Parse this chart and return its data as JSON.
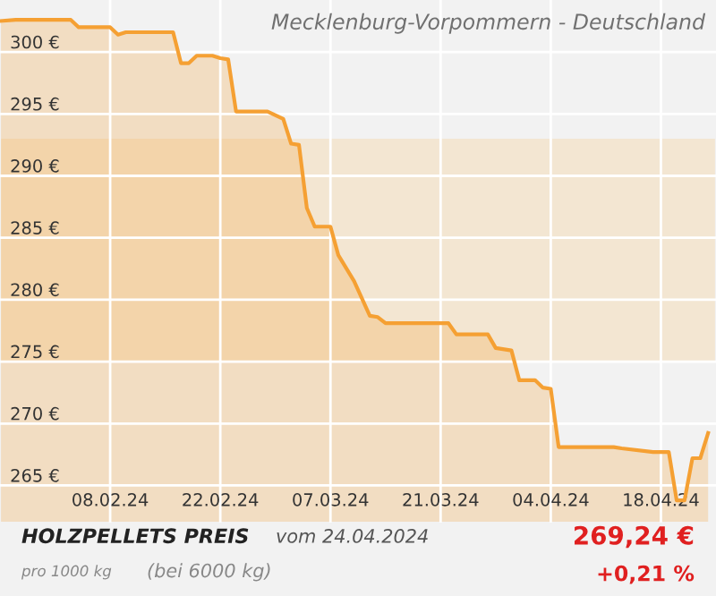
{
  "chart_data": {
    "type": "area",
    "title": "Mecklenburg-Vorpommern - Deutschland",
    "x": [
      "2024-01-25",
      "2024-01-27",
      "2024-02-03",
      "2024-02-04",
      "2024-02-08",
      "2024-02-09",
      "2024-02-10",
      "2024-02-16",
      "2024-02-17",
      "2024-02-18",
      "2024-02-19",
      "2024-02-21",
      "2024-02-22",
      "2024-02-23",
      "2024-02-24",
      "2024-02-28",
      "2024-03-01",
      "2024-03-02",
      "2024-03-03",
      "2024-03-04",
      "2024-03-05",
      "2024-03-07",
      "2024-03-08",
      "2024-03-10",
      "2024-03-12",
      "2024-03-13",
      "2024-03-14",
      "2024-03-22",
      "2024-03-23",
      "2024-03-27",
      "2024-03-28",
      "2024-03-30",
      "2024-03-31",
      "2024-04-02",
      "2024-04-03",
      "2024-04-04",
      "2024-04-05",
      "2024-04-12",
      "2024-04-13",
      "2024-04-17",
      "2024-04-19",
      "2024-04-20",
      "2024-04-21",
      "2024-04-22",
      "2024-04-23",
      "2024-04-24"
    ],
    "series": [
      {
        "color": "#f5a033",
        "values": [
          302.5,
          302.6,
          302.6,
          302.0,
          302.0,
          301.4,
          301.6,
          301.6,
          299.1,
          299.1,
          299.7,
          299.7,
          299.5,
          299.4,
          295.2,
          295.2,
          294.6,
          292.6,
          292.5,
          287.4,
          285.9,
          285.9,
          283.6,
          281.5,
          278.7,
          278.6,
          278.1,
          278.1,
          277.2,
          277.2,
          276.1,
          275.9,
          273.5,
          273.5,
          272.9,
          272.8,
          268.1,
          268.1,
          268.0,
          267.7,
          267.7,
          263.8,
          263.8,
          267.2,
          267.2,
          269.24
        ]
      }
    ],
    "xlim": [
      "2024-01-25",
      "2024-04-25"
    ],
    "xticks": [
      {
        "value": "2024-02-08",
        "label": "08.02.24"
      },
      {
        "value": "2024-02-22",
        "label": "22.02.24"
      },
      {
        "value": "2024-03-07",
        "label": "07.03.24"
      },
      {
        "value": "2024-03-21",
        "label": "21.03.24"
      },
      {
        "value": "2024-04-04",
        "label": "04.04.24"
      },
      {
        "value": "2024-04-18",
        "label": "18.04.24"
      }
    ],
    "ylim": [
      262,
      304.2
    ],
    "yticks": [
      {
        "value": 265,
        "label": "265 €"
      },
      {
        "value": 270,
        "label": "270 €"
      },
      {
        "value": 275,
        "label": "275 €"
      },
      {
        "value": 280,
        "label": "280 €"
      },
      {
        "value": 285,
        "label": "285 €"
      },
      {
        "value": 290,
        "label": "290 €"
      },
      {
        "value": 295,
        "label": "295 €"
      },
      {
        "value": 300,
        "label": "300 €"
      }
    ],
    "bands": [
      {
        "axis": "y",
        "from": 275,
        "to": 293,
        "color": "#f3e6d2"
      }
    ],
    "grid": true,
    "marker": "none",
    "line_style": "solid",
    "annotations": [
      "HOLZPELLETS PREIS",
      "vom 24.04.2024",
      "pro 1000 kg",
      "(bei 6000 kg)",
      "269,24 €",
      "+0,21 %"
    ]
  }
}
